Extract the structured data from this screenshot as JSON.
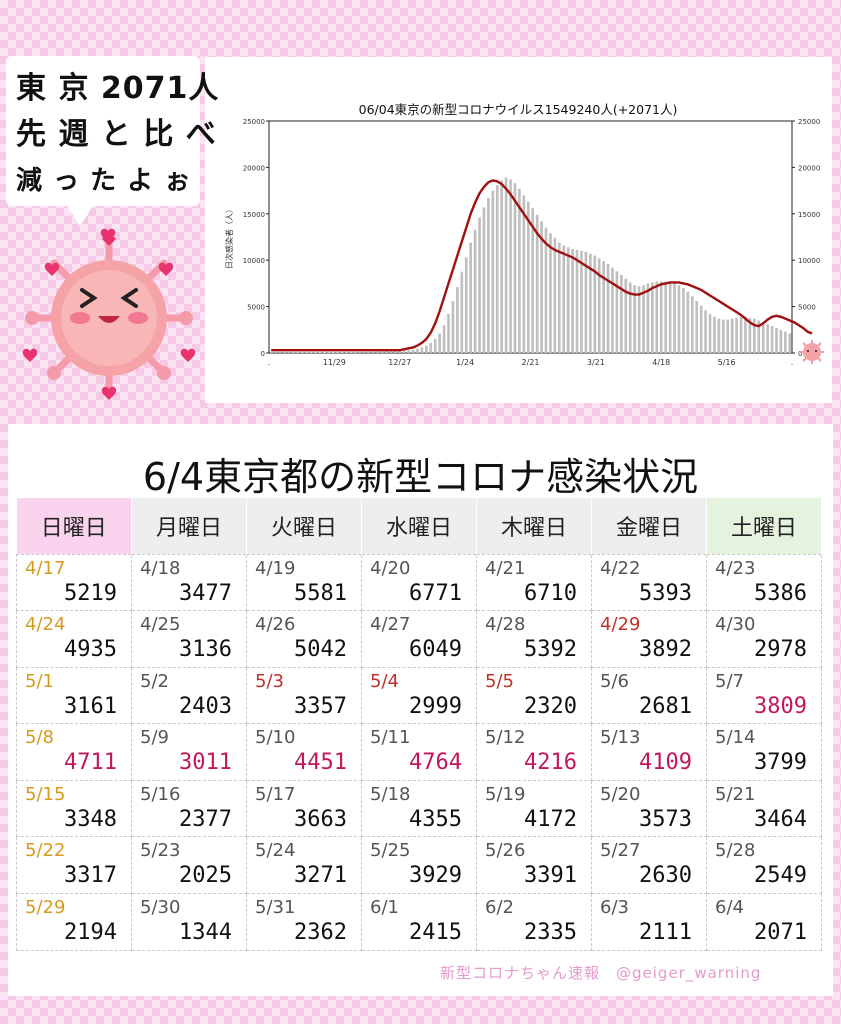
{
  "bubble": {
    "line1": "東 京 2071人",
    "line2": "先 週 と 比 べ",
    "line3": "減 っ た よ ぉ"
  },
  "main_title": "6/4東京都の新型コロナ感染状況",
  "footer": {
    "credit": "新型コロナちゃん速報　@geiger_warning"
  },
  "colors": {
    "avg_line": "#a01010",
    "bars": "#bfbfbf",
    "sunday_header": "#fad4ef",
    "saturday_header": "#e5f3de",
    "sunday_date": "#d89a1c",
    "holiday_date": "#c0302a",
    "highlight_count": "#c2185b"
  },
  "chart_data": {
    "type": "bar",
    "title": "06/04東京の新型コロナウイルス1549240人(+2071人)",
    "ylabel": "日次感染者（人）",
    "xlabel": "",
    "ylim": [
      0,
      25000
    ],
    "y_ticks": [
      "0",
      "5000",
      "10000",
      "15000",
      "20000",
      "25000"
    ],
    "x_ticks": [
      ".",
      "11/29",
      "12/27",
      "1/24",
      "2/21",
      "3/21",
      "4/18",
      "5/16",
      "."
    ],
    "grid": false,
    "series": [
      {
        "kind": "bar",
        "values": [
          30,
          30,
          30,
          35,
          35,
          40,
          40,
          45,
          45,
          50,
          50,
          55,
          55,
          60,
          60,
          70,
          70,
          80,
          80,
          90,
          100,
          110,
          120,
          130,
          140,
          150,
          160,
          180,
          200,
          220,
          250,
          300,
          380,
          480,
          600,
          800,
          1100,
          1500,
          2100,
          3000,
          4200,
          5600,
          7100,
          8700,
          10300,
          11900,
          13300,
          14600,
          15700,
          16700,
          17500,
          18100,
          18600,
          18900,
          18700,
          18300,
          17700,
          17000,
          16300,
          15600,
          14900,
          14200,
          13500,
          12900,
          12400,
          11900,
          11600,
          11400,
          11200,
          11100,
          11000,
          10900,
          10700,
          10500,
          10200,
          9900,
          9600,
          9200,
          8800,
          8400,
          8000,
          7600,
          7300,
          7200,
          7300,
          7500,
          7600,
          7700,
          7700,
          7700,
          7600,
          7500,
          7300,
          7000,
          6600,
          6100,
          5600,
          5100,
          4600,
          4200,
          3900,
          3700,
          3600,
          3600,
          3700,
          3800,
          3900,
          3900,
          3800,
          3700,
          3500,
          3300,
          3100,
          2900,
          2700,
          2500,
          2300,
          2100
        ]
      },
      {
        "kind": "line",
        "values": [
          300,
          300,
          300,
          300,
          300,
          300,
          300,
          300,
          300,
          300,
          300,
          300,
          300,
          300,
          300,
          300,
          300,
          300,
          300,
          300,
          300,
          300,
          300,
          300,
          300,
          300,
          300,
          300,
          300,
          300,
          400,
          500,
          600,
          800,
          1100,
          1500,
          2200,
          3200,
          4500,
          6000,
          7500,
          9000,
          10500,
          12000,
          13500,
          15000,
          16200,
          17200,
          17900,
          18400,
          18600,
          18500,
          18200,
          17700,
          17100,
          16400,
          15700,
          15000,
          14300,
          13600,
          12900,
          12300,
          11800,
          11400,
          11100,
          10900,
          10700,
          10500,
          10300,
          10000,
          9700,
          9400,
          9100,
          8800,
          8400,
          8100,
          7800,
          7500,
          7200,
          6900,
          6600,
          6400,
          6300,
          6300,
          6500,
          6700,
          7000,
          7200,
          7400,
          7500,
          7600,
          7600,
          7600,
          7500,
          7400,
          7200,
          7000,
          6800,
          6500,
          6200,
          5900,
          5600,
          5300,
          5000,
          4700,
          4400,
          4100,
          3700,
          3300,
          3000,
          2900,
          3200,
          3600,
          3900,
          4000,
          3900,
          3700,
          3500,
          3300,
          3000,
          2700,
          2300,
          2100
        ]
      }
    ]
  },
  "calendar": {
    "headers": [
      "日曜日",
      "月曜日",
      "火曜日",
      "水曜日",
      "木曜日",
      "金曜日",
      "土曜日"
    ],
    "weeks": [
      [
        {
          "date": "4/17",
          "count": "5219",
          "dc": "sun"
        },
        {
          "date": "4/18",
          "count": "3477"
        },
        {
          "date": "4/19",
          "count": "5581"
        },
        {
          "date": "4/20",
          "count": "6771"
        },
        {
          "date": "4/21",
          "count": "6710"
        },
        {
          "date": "4/22",
          "count": "5393"
        },
        {
          "date": "4/23",
          "count": "5386"
        }
      ],
      [
        {
          "date": "4/24",
          "count": "4935",
          "dc": "sun"
        },
        {
          "date": "4/25",
          "count": "3136"
        },
        {
          "date": "4/26",
          "count": "5042"
        },
        {
          "date": "4/27",
          "count": "6049"
        },
        {
          "date": "4/28",
          "count": "5392"
        },
        {
          "date": "4/29",
          "count": "3892",
          "dc": "hol"
        },
        {
          "date": "4/30",
          "count": "2978"
        }
      ],
      [
        {
          "date": "5/1",
          "count": "3161",
          "dc": "sun"
        },
        {
          "date": "5/2",
          "count": "2403"
        },
        {
          "date": "5/3",
          "count": "3357",
          "dc": "hol"
        },
        {
          "date": "5/4",
          "count": "2999",
          "dc": "hol"
        },
        {
          "date": "5/5",
          "count": "2320",
          "dc": "hol"
        },
        {
          "date": "5/6",
          "count": "2681"
        },
        {
          "date": "5/7",
          "count": "3809",
          "cc": "hi"
        }
      ],
      [
        {
          "date": "5/8",
          "count": "4711",
          "dc": "sun",
          "cc": "hi"
        },
        {
          "date": "5/9",
          "count": "3011",
          "cc": "hi"
        },
        {
          "date": "5/10",
          "count": "4451",
          "cc": "hi"
        },
        {
          "date": "5/11",
          "count": "4764",
          "cc": "hi"
        },
        {
          "date": "5/12",
          "count": "4216",
          "cc": "hi"
        },
        {
          "date": "5/13",
          "count": "4109",
          "cc": "hi"
        },
        {
          "date": "5/14",
          "count": "3799"
        }
      ],
      [
        {
          "date": "5/15",
          "count": "3348",
          "dc": "sun"
        },
        {
          "date": "5/16",
          "count": "2377"
        },
        {
          "date": "5/17",
          "count": "3663"
        },
        {
          "date": "5/18",
          "count": "4355"
        },
        {
          "date": "5/19",
          "count": "4172"
        },
        {
          "date": "5/20",
          "count": "3573"
        },
        {
          "date": "5/21",
          "count": "3464"
        }
      ],
      [
        {
          "date": "5/22",
          "count": "3317",
          "dc": "sun"
        },
        {
          "date": "5/23",
          "count": "2025"
        },
        {
          "date": "5/24",
          "count": "3271"
        },
        {
          "date": "5/25",
          "count": "3929"
        },
        {
          "date": "5/26",
          "count": "3391"
        },
        {
          "date": "5/27",
          "count": "2630"
        },
        {
          "date": "5/28",
          "count": "2549"
        }
      ],
      [
        {
          "date": "5/29",
          "count": "2194",
          "dc": "sun"
        },
        {
          "date": "5/30",
          "count": "1344"
        },
        {
          "date": "5/31",
          "count": "2362"
        },
        {
          "date": "6/1",
          "count": "2415"
        },
        {
          "date": "6/2",
          "count": "2335"
        },
        {
          "date": "6/3",
          "count": "2111"
        },
        {
          "date": "6/4",
          "count": "2071"
        }
      ]
    ]
  }
}
